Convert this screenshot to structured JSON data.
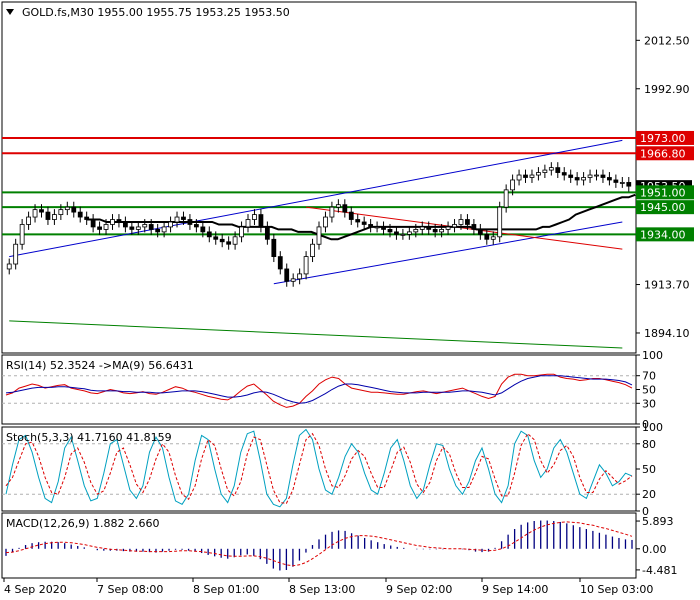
{
  "chart_data": [
    {
      "type": "candlestick",
      "panel": "price",
      "title": "GOLD.fs,M30  1955.00 1955.75 1953.25 1953.50",
      "symbol": "GOLD.fs",
      "timeframe": "M30",
      "ohlc_header": {
        "open": 1955.0,
        "high": 1955.75,
        "low": 1953.25,
        "close": 1953.5
      },
      "ylim": [
        1886,
        2028
      ],
      "y_ticks": [
        2012.5,
        1992.9,
        1913.7,
        1894.1
      ],
      "y_tick_labels": [
        "2012.50",
        "1992.90",
        "1913.70",
        "1894.10"
      ],
      "current_price_label": "1953.50",
      "levels": [
        {
          "value": 1973.0,
          "label": "1973.00",
          "color": "#dd0000"
        },
        {
          "value": 1966.8,
          "label": "1966.80",
          "color": "#dd0000"
        },
        {
          "value": 1951.0,
          "label": "1951.00",
          "color": "#008000"
        },
        {
          "value": 1945.0,
          "label": "1945.00",
          "color": "#008000"
        },
        {
          "value": 1934.0,
          "label": "1934.00",
          "color": "#008000"
        }
      ],
      "closes": [
        1922,
        1930,
        1938,
        1941,
        1944,
        1943,
        1940,
        1942,
        1944,
        1945,
        1943,
        1941,
        1940,
        1937,
        1936,
        1938,
        1940,
        1939,
        1937,
        1936,
        1937,
        1938,
        1936,
        1935,
        1937,
        1939,
        1941,
        1940,
        1938,
        1937,
        1935,
        1933,
        1932,
        1931,
        1930,
        1933,
        1937,
        1940,
        1942,
        1937,
        1932,
        1925,
        1920,
        1915,
        1916,
        1918,
        1925,
        1930,
        1937,
        1941,
        1945,
        1946,
        1943,
        1940,
        1939,
        1938,
        1937,
        1937,
        1936,
        1935,
        1934,
        1934,
        1935,
        1936,
        1937,
        1936,
        1935,
        1936,
        1937,
        1938,
        1940,
        1938,
        1936,
        1934,
        1932,
        1933,
        1945,
        1952,
        1956,
        1958,
        1957,
        1958,
        1959,
        1960,
        1961,
        1959,
        1958,
        1957,
        1956,
        1957,
        1958,
        1958,
        1957,
        1956,
        1955,
        1955,
        1953.5
      ],
      "ma_black": [
        1940,
        1940,
        1940,
        1939,
        1939,
        1939,
        1939,
        1939,
        1939,
        1939,
        1939,
        1939,
        1939,
        1939,
        1939,
        1939,
        1939,
        1939,
        1939,
        1939,
        1938,
        1938,
        1938,
        1937,
        1937,
        1937,
        1937,
        1937,
        1937,
        1936,
        1936,
        1936,
        1935,
        1935,
        1935,
        1934,
        1933,
        1932,
        1932,
        1933,
        1934,
        1935,
        1936,
        1937,
        1937,
        1937,
        1937,
        1937,
        1937,
        1937,
        1937,
        1937,
        1937,
        1937,
        1937,
        1937,
        1937,
        1937,
        1937,
        1936,
        1936,
        1936,
        1936,
        1936,
        1936,
        1936,
        1936,
        1936,
        1936,
        1937,
        1937,
        1938,
        1939,
        1940,
        1942,
        1943,
        1944,
        1945,
        1946,
        1947,
        1948,
        1949,
        1949,
        1950
      ],
      "trendlines": [
        {
          "color": "#0000cc",
          "from": [
            0,
            1925
          ],
          "to": [
            95,
            1972
          ]
        },
        {
          "color": "#0000cc",
          "from": [
            41,
            1914
          ],
          "to": [
            95,
            1939
          ]
        },
        {
          "color": "#dd0000",
          "from": [
            46,
            1945
          ],
          "to": [
            95,
            1928
          ]
        },
        {
          "color": "#008000",
          "from": [
            0,
            1899
          ],
          "to": [
            95,
            1888
          ]
        }
      ]
    },
    {
      "type": "line",
      "panel": "rsi",
      "title": "RSI(14) 52.3524  ->MA(9) 56.6431",
      "ylim": [
        0,
        100
      ],
      "y_tick_labels": [
        "100",
        "70",
        "50",
        "30",
        "0"
      ],
      "y_ticks": [
        100,
        70,
        50,
        30,
        0
      ],
      "levels": [
        70,
        30
      ],
      "series": [
        {
          "color": "#dd0000",
          "values": [
            42,
            45,
            52,
            55,
            58,
            56,
            52,
            54,
            56,
            57,
            52,
            50,
            48,
            45,
            44,
            47,
            50,
            48,
            45,
            44,
            45,
            47,
            44,
            43,
            46,
            50,
            54,
            52,
            48,
            46,
            43,
            40,
            38,
            36,
            35,
            40,
            48,
            55,
            58,
            50,
            42,
            33,
            28,
            24,
            26,
            30,
            40,
            48,
            58,
            64,
            68,
            66,
            58,
            52,
            50,
            48,
            46,
            46,
            45,
            44,
            43,
            43,
            45,
            47,
            48,
            46,
            44,
            46,
            48,
            50,
            52,
            48,
            44,
            40,
            37,
            40,
            58,
            68,
            72,
            72,
            70,
            70,
            71,
            72,
            72,
            68,
            66,
            65,
            63,
            64,
            66,
            66,
            64,
            62,
            60,
            57,
            52
          ]
        },
        {
          "color": "#0000aa",
          "values": [
            45,
            46,
            48,
            50,
            52,
            53,
            53,
            53,
            54,
            54,
            53,
            52,
            51,
            49,
            48,
            48,
            48,
            48,
            47,
            47,
            46,
            46,
            46,
            45,
            45,
            46,
            47,
            48,
            48,
            48,
            47,
            45,
            43,
            41,
            39,
            39,
            40,
            42,
            45,
            47,
            46,
            43,
            39,
            35,
            32,
            30,
            31,
            34,
            39,
            44,
            50,
            55,
            58,
            58,
            57,
            55,
            53,
            51,
            49,
            47,
            46,
            45,
            45,
            45,
            46,
            46,
            46,
            46,
            46,
            47,
            48,
            48,
            47,
            46,
            44,
            42,
            45,
            51,
            57,
            62,
            66,
            68,
            70,
            70,
            70,
            70,
            69,
            68,
            67,
            66,
            65,
            65,
            65,
            64,
            63,
            61,
            56.6
          ]
        }
      ]
    },
    {
      "type": "line",
      "panel": "stochastic",
      "title": "Stoch(5,3,3) 41.7160 41.8159",
      "ylim": [
        0,
        100
      ],
      "y_tick_labels": [
        "100",
        "80",
        "50",
        "20",
        "0"
      ],
      "y_ticks": [
        100,
        80,
        50,
        20,
        0
      ],
      "levels": [
        80,
        20
      ],
      "series": [
        {
          "color": "#00a0c0",
          "values": [
            20,
            55,
            85,
            90,
            70,
            40,
            15,
            10,
            35,
            75,
            88,
            60,
            30,
            12,
            15,
            45,
            80,
            85,
            55,
            25,
            15,
            30,
            70,
            88,
            75,
            40,
            12,
            8,
            20,
            60,
            90,
            85,
            50,
            20,
            10,
            30,
            70,
            92,
            95,
            60,
            20,
            8,
            5,
            15,
            55,
            90,
            97,
            85,
            50,
            25,
            20,
            40,
            65,
            80,
            70,
            45,
            25,
            20,
            45,
            75,
            85,
            60,
            30,
            15,
            25,
            55,
            80,
            78,
            50,
            30,
            20,
            35,
            60,
            75,
            50,
            20,
            10,
            30,
            80,
            95,
            90,
            60,
            40,
            50,
            75,
            85,
            70,
            45,
            20,
            15,
            35,
            55,
            45,
            30,
            35,
            45,
            41.7
          ]
        },
        {
          "color": "#dd0000",
          "values": [
            30,
            40,
            60,
            80,
            82,
            65,
            40,
            22,
            20,
            40,
            68,
            75,
            58,
            34,
            20,
            24,
            45,
            70,
            75,
            55,
            32,
            22,
            38,
            62,
            80,
            70,
            42,
            20,
            14,
            30,
            62,
            85,
            78,
            50,
            25,
            18,
            35,
            68,
            88,
            85,
            55,
            25,
            10,
            9,
            25,
            55,
            85,
            92,
            78,
            50,
            30,
            28,
            42,
            62,
            72,
            65,
            45,
            28,
            28,
            48,
            70,
            76,
            58,
            32,
            22,
            34,
            60,
            76,
            68,
            45,
            28,
            28,
            45,
            65,
            62,
            38,
            18,
            18,
            45,
            78,
            92,
            85,
            60,
            45,
            55,
            72,
            78,
            65,
            40,
            22,
            22,
            38,
            48,
            40,
            32,
            36,
            41.8
          ]
        }
      ]
    },
    {
      "type": "bar",
      "panel": "macd",
      "title": "MACD(12,26,9) 1.882 2.660",
      "ylim": [
        -6.2,
        7.6
      ],
      "y_tick_labels": [
        "5.893",
        "0.00",
        "-4.481"
      ],
      "y_ticks": [
        5.893,
        0.0,
        -4.481
      ],
      "histogram": [
        -1.5,
        -0.8,
        0.2,
        0.8,
        1.2,
        1.4,
        1.5,
        1.5,
        1.4,
        1.2,
        0.9,
        0.6,
        0.3,
        0.0,
        -0.3,
        -0.4,
        -0.4,
        -0.4,
        -0.5,
        -0.6,
        -0.6,
        -0.6,
        -0.7,
        -0.8,
        -0.6,
        -0.4,
        -0.2,
        -0.2,
        -0.4,
        -0.6,
        -0.9,
        -1.3,
        -1.6,
        -1.9,
        -2.1,
        -1.8,
        -1.4,
        -1.2,
        -1.5,
        -2.2,
        -3.2,
        -4.2,
        -4.6,
        -4.5,
        -3.8,
        -2.5,
        -0.8,
        0.8,
        2.0,
        3.0,
        3.6,
        3.9,
        3.8,
        3.3,
        2.8,
        2.3,
        1.8,
        1.4,
        1.0,
        0.7,
        0.4,
        0.2,
        0.0,
        -0.1,
        -0.1,
        -0.1,
        -0.1,
        -0.1,
        0.0,
        0.0,
        -0.1,
        -0.3,
        -0.6,
        -0.7,
        -0.6,
        0.2,
        1.6,
        3.0,
        4.2,
        5.1,
        5.6,
        5.9,
        6.0,
        6.0,
        5.9,
        5.7,
        5.4,
        5.0,
        4.6,
        4.2,
        3.8,
        3.4,
        3.0,
        2.6,
        2.3,
        2.0,
        1.88
      ],
      "signal": [
        -0.8,
        -0.7,
        -0.4,
        0.0,
        0.4,
        0.8,
        1.1,
        1.3,
        1.4,
        1.4,
        1.3,
        1.1,
        0.9,
        0.6,
        0.3,
        0.1,
        -0.1,
        -0.2,
        -0.3,
        -0.4,
        -0.5,
        -0.5,
        -0.6,
        -0.6,
        -0.6,
        -0.6,
        -0.5,
        -0.4,
        -0.4,
        -0.5,
        -0.6,
        -0.8,
        -1.0,
        -1.3,
        -1.5,
        -1.6,
        -1.6,
        -1.5,
        -1.5,
        -1.7,
        -2.0,
        -2.5,
        -3.0,
        -3.4,
        -3.6,
        -3.4,
        -2.9,
        -2.1,
        -1.2,
        -0.2,
        0.8,
        1.6,
        2.2,
        2.6,
        2.8,
        2.8,
        2.7,
        2.5,
        2.2,
        1.9,
        1.6,
        1.3,
        1.0,
        0.7,
        0.5,
        0.3,
        0.2,
        0.1,
        0.0,
        0.0,
        0.0,
        -0.1,
        -0.2,
        -0.3,
        -0.4,
        -0.3,
        0.0,
        0.6,
        1.4,
        2.3,
        3.2,
        4.0,
        4.6,
        5.1,
        5.4,
        5.6,
        5.7,
        5.6,
        5.5,
        5.2,
        5.0,
        4.6,
        4.3,
        3.9,
        3.5,
        3.1,
        2.66
      ]
    }
  ],
  "x_axis_labels": [
    "4 Sep 2020",
    "7 Sep 08:00",
    "8 Sep 01:00",
    "8 Sep 13:00",
    "9 Sep 02:00",
    "9 Sep 14:00",
    "10 Sep 03:00"
  ],
  "colors": {
    "bull": "#000000",
    "bear": "#000000",
    "grid": "#c8c8c8",
    "border": "#000000"
  }
}
